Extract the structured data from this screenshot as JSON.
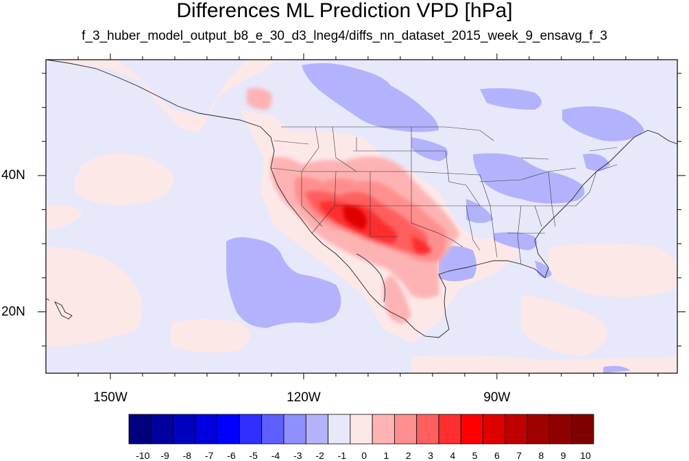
{
  "title": "Differences ML Prediction VPD [hPa]",
  "subtitle": "f_3_huber_model_output_b8_e_30_d3_lneg4/diffs_nn_dataset_2015_week_9_ensavg_f_3",
  "map": {
    "lon_range": [
      -160,
      -62
    ],
    "lat_range": [
      11,
      57
    ],
    "lon_labels": [
      {
        "lon": -150,
        "text": "150W"
      },
      {
        "lon": -120,
        "text": "120W"
      },
      {
        "lon": -90,
        "text": "90W"
      }
    ],
    "lat_labels": [
      {
        "lat": 40,
        "text": "40N"
      },
      {
        "lat": 20,
        "text": "20N"
      }
    ],
    "background_color": "#e8e8fb"
  },
  "colorbar": {
    "levels": [
      "-10",
      "-9",
      "-8",
      "-7",
      "-6",
      "-5",
      "-4",
      "-3",
      "-2",
      "-1",
      "0",
      "1",
      "2",
      "3",
      "4",
      "5",
      "6",
      "7",
      "8",
      "9",
      "10"
    ],
    "colors": [
      "#00007f",
      "#00009f",
      "#0000bf",
      "#0000df",
      "#0000ff",
      "#2f2fff",
      "#5f5fff",
      "#8f8fff",
      "#b3b3fd",
      "#e8e8fb",
      "#fde8e8",
      "#fdb3b3",
      "#ff8f8f",
      "#ff5f5f",
      "#ff2f2f",
      "#ff0000",
      "#df0000",
      "#bf0000",
      "#9f0000",
      "#8f0000",
      "#7f0000"
    ]
  }
}
